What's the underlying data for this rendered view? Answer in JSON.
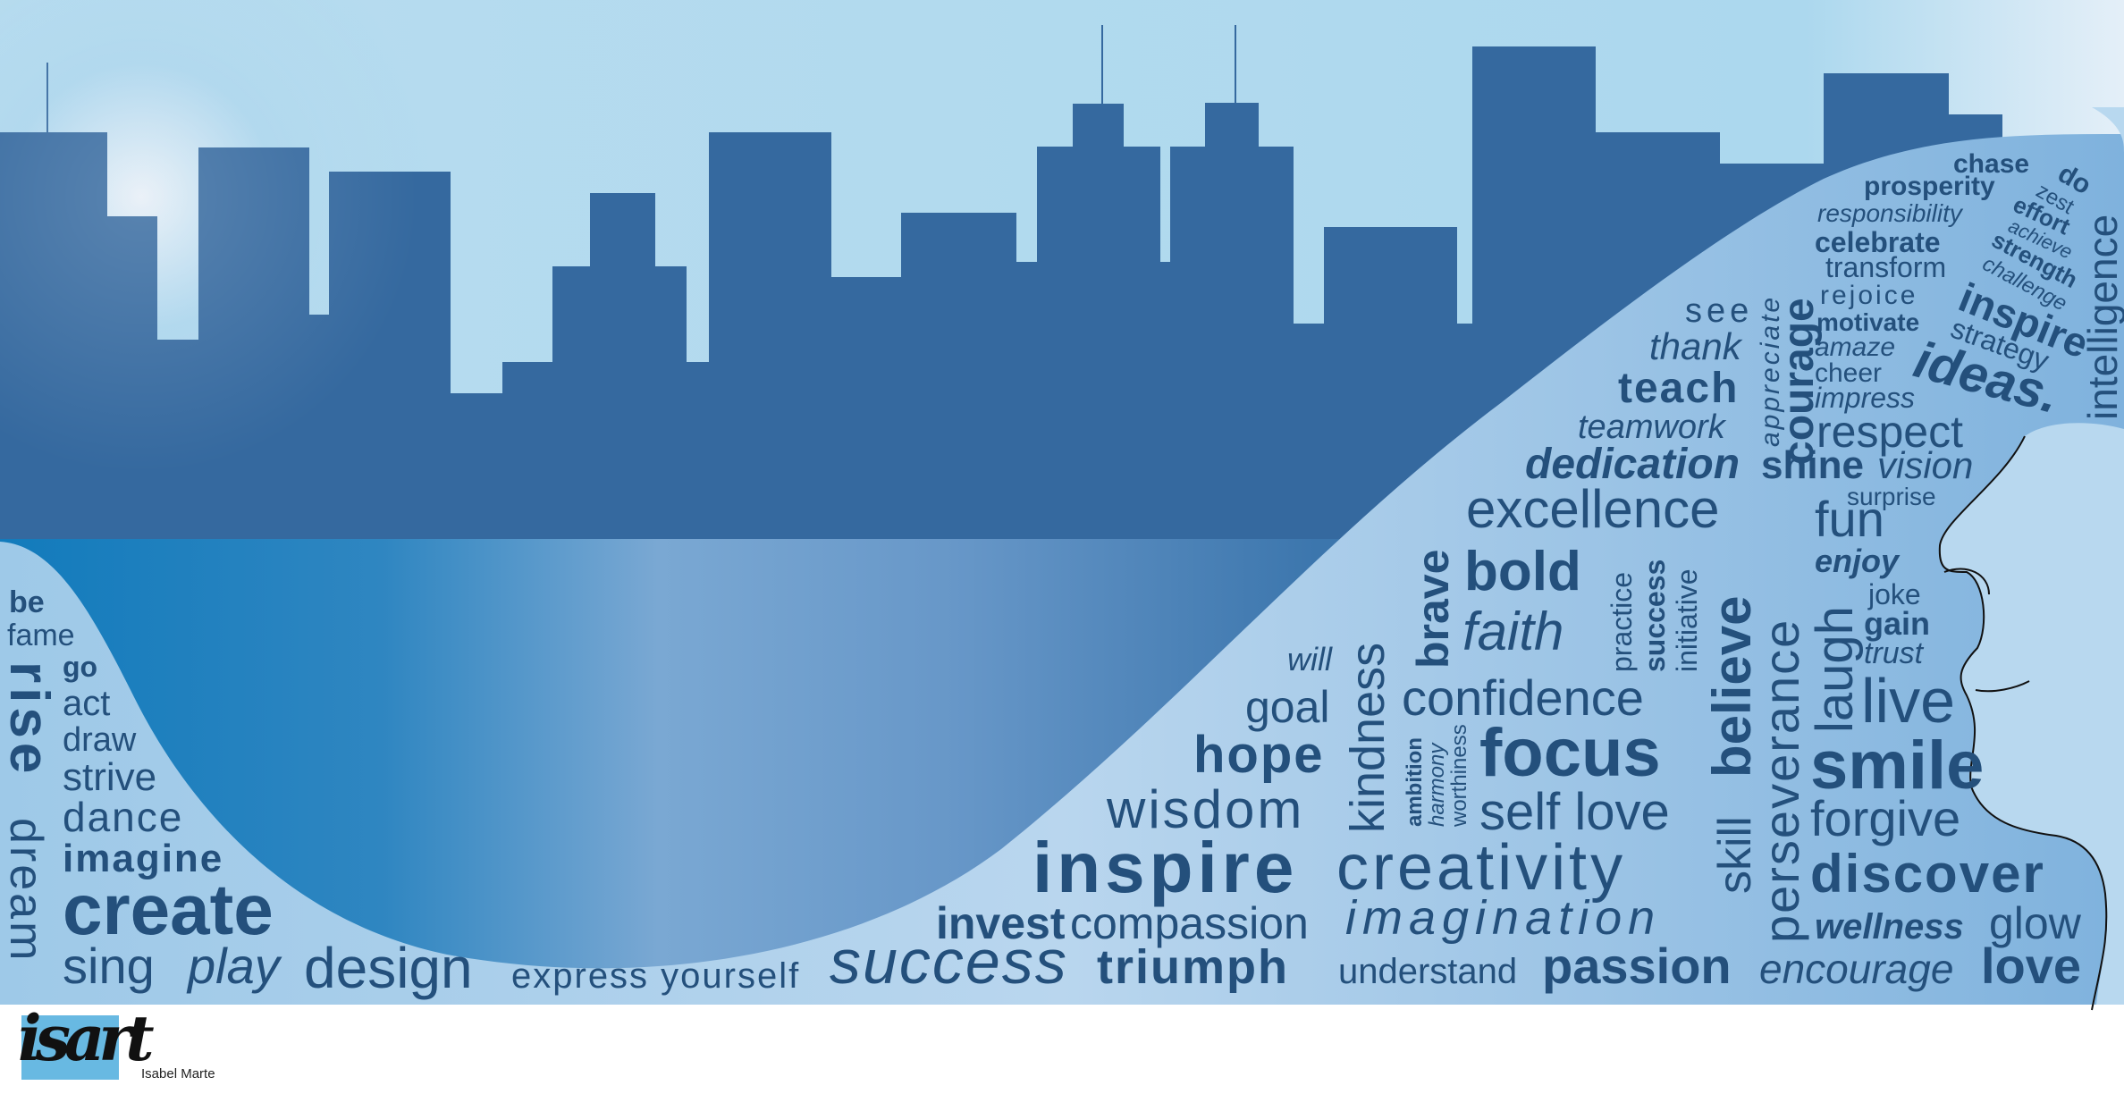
{
  "artwork": {
    "artist_credit": "Isabel Marte",
    "logo_text": "isart",
    "colors": {
      "sky": "#acd7ed",
      "buildings": "#35699f",
      "water_left": "#1b7fc0",
      "water_mid": "#7ba8d1",
      "wave": "#9cc6e6",
      "text": "#24507c"
    },
    "words": [
      "chase",
      "do",
      "zest",
      "prosperity",
      "effort",
      "responsibility",
      "achieve",
      "celebrate",
      "strength",
      "transform",
      "challenge",
      "rejoice",
      "inspire",
      "motivate",
      "intelligence",
      "amaze",
      "strategy",
      "cheer",
      "ideas.",
      "impress",
      "appreciate",
      "courage",
      "see",
      "thank",
      "teach",
      "teamwork",
      "respect",
      "dedication",
      "shine",
      "vision",
      "surprise",
      "excellence",
      "fun",
      "enjoy",
      "bold",
      "joke",
      "practice",
      "success",
      "initiative",
      "believe",
      "perseverance",
      "gain",
      "faith",
      "trust",
      "brave",
      "laugh",
      "will",
      "live",
      "goal",
      "confidence",
      "kindness",
      "hope",
      "ambition",
      "harmony",
      "worthiness",
      "focus",
      "smile",
      "self love",
      "forgive",
      "wisdom",
      "skill",
      "inspire",
      "creativity",
      "discover",
      "invest",
      "compassion",
      "imagination",
      "wellness",
      "glow",
      "design",
      "express yourself",
      "success",
      "triumph",
      "understand",
      "passion",
      "encourage",
      "love",
      "be",
      "fame",
      "go",
      "rise",
      "act",
      "draw",
      "strive",
      "dance",
      "dream",
      "imagine",
      "create",
      "sing",
      "play"
    ]
  }
}
